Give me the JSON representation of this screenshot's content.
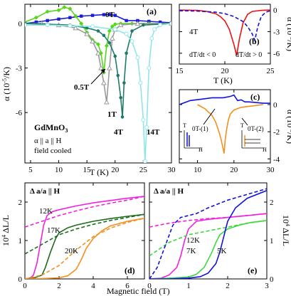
{
  "colors": {
    "t0": "#1c1cd6",
    "t05": "#55d61b",
    "t1": "#9a9a9a",
    "t4": "#1f7a6a",
    "t14": "#8fe6e9",
    "red": "#ee1111",
    "blue": "#1111dd",
    "orange": "#f5901e",
    "magenta": "#f022e0",
    "darkgreen": "#1e6b1e",
    "green": "#3ed63e"
  },
  "chart_data": [
    {
      "id": "a",
      "type": "line",
      "panel_label": "(a)",
      "xlabel": "T (K)",
      "ylabel": "α (10⁻⁵/K)",
      "xlim": [
        4,
        30
      ],
      "ylim": [
        -9.4,
        1.3
      ],
      "xticks": [
        5,
        10,
        15,
        20,
        25,
        30
      ],
      "yticks": [
        0,
        -3,
        -6
      ],
      "annotations": [
        "GdMnO₃",
        "α || a || H",
        "field cooled"
      ],
      "series": [
        {
          "name": "0T",
          "color_key": "t0",
          "marker": "square",
          "x": [
            4,
            6,
            8,
            10,
            12,
            14,
            16,
            18,
            19,
            20,
            22,
            24,
            26,
            28,
            30
          ],
          "y": [
            0,
            0.1,
            0.2,
            0.3,
            0.4,
            0.5,
            0.55,
            0.6,
            0.6,
            0.55,
            0.2,
            0.2,
            0.15,
            0.1,
            0.05
          ]
        },
        {
          "name": "0.5T",
          "color_key": "t05",
          "marker": "diamond",
          "x": [
            4,
            6,
            8,
            10,
            11,
            12,
            13,
            14,
            15,
            16,
            17,
            17.5,
            18,
            18.5,
            19,
            19.5,
            20,
            21,
            23,
            26,
            30
          ],
          "y": [
            0.1,
            0.4,
            0.8,
            0.9,
            1.1,
            1.0,
            0.5,
            0,
            -0.6,
            -1.1,
            -1.4,
            -2,
            -3.3,
            -1.5,
            -0.5,
            -0.2,
            -0.05,
            0,
            0,
            0,
            0
          ]
        },
        {
          "name": "1T",
          "color_key": "t1",
          "marker": "triangle",
          "x": [
            4,
            7,
            10,
            13,
            15,
            16,
            17,
            17.5,
            18,
            18.5,
            19,
            19.5,
            20,
            21,
            24,
            30
          ],
          "y": [
            0,
            0,
            -0.1,
            -0.3,
            -0.7,
            -1.2,
            -2,
            -3,
            -4,
            -5.3,
            -3,
            -1,
            -0.4,
            -0.1,
            0,
            0
          ]
        },
        {
          "name": "4T",
          "color_key": "t4",
          "marker": "circle",
          "x": [
            4,
            8,
            12,
            15,
            17,
            18,
            19,
            20,
            20.5,
            21,
            21.3,
            21.6,
            22,
            23,
            25,
            30
          ],
          "y": [
            0,
            -0.05,
            -0.1,
            -0.3,
            -0.5,
            -0.8,
            -1.3,
            -2.2,
            -3.5,
            -5,
            -6.3,
            -4,
            -2,
            -0.5,
            -0.1,
            0
          ]
        },
        {
          "name": "14T",
          "color_key": "t14",
          "marker": "circle-open",
          "x": [
            4,
            8,
            12,
            16,
            20,
            22,
            23,
            24,
            24.5,
            25,
            25.3,
            25.6,
            26,
            26.5,
            27,
            28,
            30
          ],
          "y": [
            -0.1,
            -0.1,
            -0.15,
            -0.2,
            -0.4,
            -0.7,
            -1.2,
            -2.3,
            -4,
            -6.5,
            -9.3,
            -7,
            -3,
            -1,
            -0.4,
            -0.1,
            0
          ]
        }
      ]
    },
    {
      "id": "b",
      "type": "line",
      "panel_label": "(b)",
      "xlabel": "T (K)",
      "ylabel": "α (10⁻⁵/K)",
      "xlim": [
        15,
        25
      ],
      "ylim": [
        -7.5,
        0.8
      ],
      "xticks": [
        15,
        20,
        25
      ],
      "yticks": [
        0,
        -3,
        -6
      ],
      "annotations": [
        "4T",
        "dT/dt < 0",
        "dT/dt > 0"
      ],
      "series": [
        {
          "name": "dT/dt > 0",
          "color_key": "red",
          "style": "solid",
          "x": [
            15,
            17,
            18,
            19,
            19.5,
            20,
            20.5,
            21,
            21.3,
            21.6,
            22,
            22.5,
            23,
            24,
            25
          ],
          "y": [
            0,
            -0.05,
            -0.2,
            -0.5,
            -0.9,
            -1.5,
            -2.7,
            -4.8,
            -6.3,
            -4,
            -1.8,
            -0.6,
            -0.2,
            -0.05,
            0
          ]
        },
        {
          "name": "dT/dt < 0",
          "color_key": "blue",
          "style": "dashed",
          "x": [
            15,
            17,
            19,
            20,
            21,
            22,
            22.5,
            23,
            23.3,
            23.6,
            24,
            24.5,
            25
          ],
          "y": [
            -0.1,
            -0.15,
            -0.3,
            -0.5,
            -0.9,
            -1.6,
            -2.3,
            -3.3,
            -4.2,
            -2.4,
            -0.9,
            -0.3,
            -0.1
          ]
        }
      ]
    },
    {
      "id": "c",
      "type": "line",
      "panel_label": "(c)",
      "xlabel": "",
      "ylabel": "α (10⁻⁵/K)",
      "xlim": [
        5,
        30
      ],
      "ylim": [
        -4.3,
        1.1
      ],
      "xticks": [
        10,
        20,
        30
      ],
      "yticks": [
        0,
        -2,
        -4
      ],
      "annotations": [
        "0T-(1)",
        "0T-(2)",
        "T",
        "H"
      ],
      "series": [
        {
          "name": "0T-(1)",
          "color_key": "blue",
          "style": "solid",
          "x": [
            5,
            8,
            11,
            14,
            17,
            19,
            20,
            21,
            22,
            23,
            24,
            26,
            28,
            30
          ],
          "y": [
            0,
            0.3,
            0.4,
            0.5,
            0.5,
            0.6,
            0.7,
            0.3,
            0.35,
            0.2,
            0.2,
            0.15,
            0.1,
            0.1
          ]
        },
        {
          "name": "0T-(2)",
          "color_key": "orange",
          "style": "solid",
          "x": [
            10,
            12,
            14,
            15,
            16,
            16.5,
            17,
            17.3,
            17.6,
            18,
            18.5,
            19,
            20,
            22,
            25,
            28
          ],
          "y": [
            0,
            -0.3,
            -0.8,
            -1.3,
            -2.1,
            -2.6,
            -3.2,
            -3.6,
            -2.6,
            -1.8,
            -1.1,
            -0.7,
            -0.4,
            -0.2,
            -0.1,
            0
          ]
        }
      ]
    },
    {
      "id": "d",
      "type": "line",
      "panel_label": "(d)",
      "xlabel": "",
      "ylabel": "10⁴ ΔL/L",
      "xlim": [
        0,
        7
      ],
      "ylim": [
        0,
        2.5
      ],
      "xticks": [
        0,
        2,
        4,
        6
      ],
      "yticks": [
        0,
        1,
        2
      ],
      "annotations": [
        "Δ a/a || H"
      ],
      "series": [
        {
          "name": "12K",
          "color_key": "magenta",
          "style": "solid",
          "x": [
            0,
            0.3,
            0.5,
            0.7,
            0.9,
            1.1,
            1.3,
            1.6,
            2,
            3,
            4,
            5,
            6,
            7
          ],
          "y": [
            0,
            0.02,
            0.1,
            0.4,
            0.9,
            1.4,
            1.65,
            1.75,
            1.8,
            1.9,
            1.98,
            2.04,
            2.1,
            2.15
          ]
        },
        {
          "name": "12K-down",
          "color_key": "magenta",
          "style": "dashed",
          "x": [
            0,
            1,
            2,
            3,
            4,
            5,
            6,
            7
          ],
          "y": [
            1.35,
            1.5,
            1.65,
            1.77,
            1.88,
            1.97,
            2.05,
            2.15
          ]
        },
        {
          "name": "17K",
          "color_key": "darkgreen",
          "style": "solid",
          "x": [
            0,
            0.5,
            1,
            1.2,
            1.5,
            1.8,
            2,
            2.5,
            3,
            4,
            5,
            6,
            7
          ],
          "y": [
            0,
            0.02,
            0.1,
            0.3,
            0.7,
            1.05,
            1.2,
            1.33,
            1.4,
            1.5,
            1.57,
            1.63,
            1.68
          ]
        },
        {
          "name": "17K-down",
          "color_key": "darkgreen",
          "style": "dashed",
          "x": [
            0,
            1,
            2,
            3,
            4,
            5,
            6,
            7
          ],
          "y": [
            0.65,
            0.9,
            1.15,
            1.3,
            1.42,
            1.52,
            1.6,
            1.68
          ]
        },
        {
          "name": "20K",
          "color_key": "orange",
          "style": "solid",
          "x": [
            0,
            1,
            2,
            2.5,
            3,
            3.3,
            3.6,
            4,
            4.5,
            5,
            6,
            7
          ],
          "y": [
            0,
            0.01,
            0.03,
            0.08,
            0.25,
            0.5,
            0.8,
            1.05,
            1.25,
            1.38,
            1.5,
            1.58
          ]
        },
        {
          "name": "20K-down",
          "color_key": "orange",
          "style": "dashed",
          "x": [
            0,
            1,
            2,
            3,
            4,
            5,
            6,
            7
          ],
          "y": [
            0,
            0.1,
            0.35,
            0.75,
            1.1,
            1.32,
            1.47,
            1.58
          ]
        }
      ]
    },
    {
      "id": "e",
      "type": "line",
      "panel_label": "(e)",
      "xlabel": "",
      "ylabel": "10⁴ ΔL/L",
      "xlim": [
        0,
        3
      ],
      "ylim": [
        0,
        2.5
      ],
      "xticks": [
        0,
        1,
        2,
        3
      ],
      "yticks": [
        0,
        1,
        2
      ],
      "annotations": [
        "Δ a/a || H"
      ],
      "series": [
        {
          "name": "12K",
          "color_key": "magenta",
          "style": "solid",
          "x": [
            0,
            0.3,
            0.5,
            0.7,
            0.8,
            0.9,
            1,
            1.2,
            1.5,
            2,
            2.5,
            3
          ],
          "y": [
            0,
            0.02,
            0.1,
            0.3,
            0.6,
            1.0,
            1.3,
            1.5,
            1.55,
            1.6,
            1.65,
            1.7
          ]
        },
        {
          "name": "12K-down",
          "color_key": "magenta",
          "style": "dashed",
          "x": [
            0,
            0.5,
            1,
            1.5,
            2,
            2.5,
            3
          ],
          "y": [
            1.35,
            1.45,
            1.52,
            1.57,
            1.6,
            1.65,
            1.7
          ]
        },
        {
          "name": "7K",
          "color_key": "green",
          "style": "solid",
          "x": [
            0,
            0.5,
            1,
            1.2,
            1.4,
            1.6,
            1.7,
            1.8,
            2,
            2.3,
            2.6,
            3
          ],
          "y": [
            0,
            0.02,
            0.05,
            0.12,
            0.3,
            0.7,
            0.95,
            1.15,
            1.3,
            1.4,
            1.47,
            1.52
          ]
        },
        {
          "name": "7K-down",
          "color_key": "green",
          "style": "dashed",
          "x": [
            0,
            0.5,
            1,
            1.5,
            2,
            2.5,
            3
          ],
          "y": [
            0.6,
            0.95,
            1.15,
            1.25,
            1.35,
            1.45,
            1.52
          ]
        },
        {
          "name": "5K",
          "color_key": "blue",
          "style": "solid",
          "x": [
            0,
            0.5,
            1,
            1.3,
            1.5,
            1.7,
            1.8,
            1.9,
            2,
            2.2,
            2.5,
            3
          ],
          "y": [
            0,
            0,
            0.02,
            0.06,
            0.15,
            0.4,
            0.7,
            1.1,
            1.5,
            1.85,
            2.1,
            2.3
          ]
        },
        {
          "name": "5K-down",
          "color_key": "blue",
          "style": "dashed",
          "x": [
            0,
            0.2,
            0.4,
            0.6,
            0.8,
            1,
            1.2,
            1.5,
            2,
            2.5,
            3
          ],
          "y": [
            0,
            0.3,
            0.85,
            1.4,
            1.6,
            1.65,
            1.7,
            1.85,
            2.05,
            2.2,
            2.35
          ]
        }
      ]
    }
  ],
  "labels": {
    "a": {
      "s0": "0T",
      "s05": "0.5T",
      "s1": "1T",
      "s4": "4T",
      "s14": "14T",
      "compound": "GdMnO",
      "sub3": "3",
      "alpha": "α || a || H",
      "fc": "field cooled",
      "xlabel": "T (K)",
      "ylabel": "α (10",
      "ylabel_exp": "-5",
      "ylabel_end": "/K)"
    },
    "b": {
      "t4": "4T",
      "down": "dT/dt < 0",
      "up": "dT/dt > 0",
      "xlabel": "T (K)",
      "ylabel": "α (10",
      "ylabel_exp": "-5",
      "ylabel_end": "/K)"
    },
    "c": {
      "r1": "0T-(1)",
      "r2": "0T-(2)",
      "t": "T",
      "h": "H",
      "ylabel": "α (10",
      "ylabel_exp": "-5",
      "ylabel_end": "/K)"
    },
    "d": {
      "title": "Δ a/a || H",
      "k12": "12K",
      "k17": "17K",
      "k20": "20K",
      "ylabel_pre": "10",
      "ylabel_exp": "4",
      "ylabel_end": " ΔL/L"
    },
    "e": {
      "title": "Δ a/a || H",
      "k12": "12K",
      "k7": "7K",
      "k5": "5K",
      "ylabel_pre": "10",
      "ylabel_exp": "4",
      "ylabel_end": " ΔL/L"
    },
    "xlabel_bottom": "Magnetic field (T)"
  }
}
